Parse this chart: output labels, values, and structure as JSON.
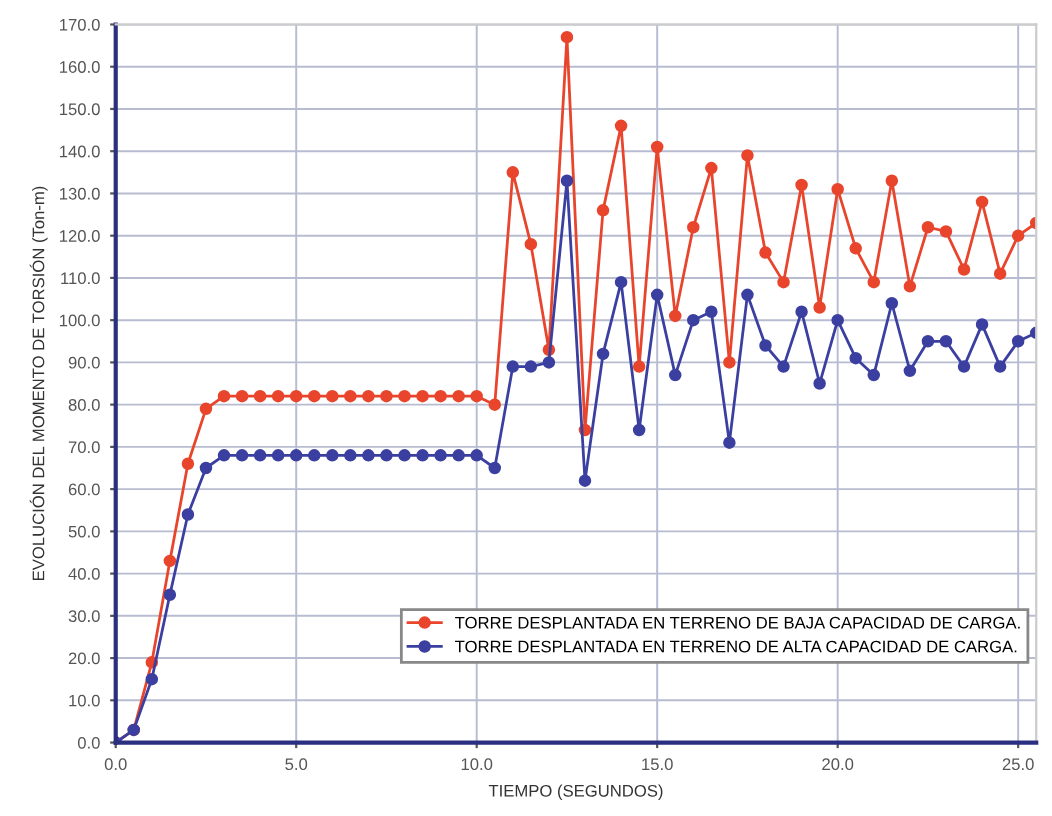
{
  "chart_data": {
    "type": "line",
    "xlabel": "TIEMPO (SEGUNDOS)",
    "ylabel": "EVOLUCIÓN DEL MOMENTO DE TORSIÓN (Ton-m)",
    "x": [
      0,
      0.5,
      1,
      1.5,
      2,
      2.5,
      3,
      3.5,
      4,
      4.5,
      5,
      5.5,
      6,
      6.5,
      7,
      7.5,
      8,
      8.5,
      9,
      9.5,
      10,
      10.5,
      11,
      11.5,
      12,
      12.5,
      13,
      13.5,
      14,
      14.5,
      15,
      15.5,
      16,
      16.5,
      17,
      17.5,
      18,
      18.5,
      19,
      19.5,
      20,
      20.5,
      21,
      21.5,
      22,
      22.5,
      23,
      23.5,
      24,
      24.5,
      25,
      25.5
    ],
    "series": [
      {
        "name": "TORRE DESPLANTADA EN TERRENO DE BAJA CAPACIDAD DE CARGA.",
        "color": "#e8452c",
        "values": [
          0,
          3,
          19,
          43,
          66,
          79,
          82,
          82,
          82,
          82,
          82,
          82,
          82,
          82,
          82,
          82,
          82,
          82,
          82,
          82,
          82,
          80,
          135,
          118,
          93,
          167,
          74,
          126,
          146,
          89,
          141,
          101,
          122,
          136,
          90,
          139,
          116,
          109,
          132,
          103,
          131,
          117,
          109,
          133,
          108,
          122,
          121,
          112,
          128,
          111,
          120,
          123
        ]
      },
      {
        "name": "TORRE DESPLANTADA EN TERRENO DE ALTA CAPACIDAD DE CARGA.",
        "color": "#3a3fa0",
        "values": [
          0,
          3,
          15,
          35,
          54,
          65,
          68,
          68,
          68,
          68,
          68,
          68,
          68,
          68,
          68,
          68,
          68,
          68,
          68,
          68,
          68,
          65,
          89,
          89,
          90,
          133,
          62,
          92,
          109,
          74,
          106,
          87,
          100,
          102,
          71,
          106,
          94,
          89,
          102,
          85,
          100,
          91,
          87,
          104,
          88,
          95,
          95,
          89,
          99,
          89,
          95,
          97
        ]
      }
    ],
    "xlim": [
      0,
      25.5
    ],
    "ylim": [
      0,
      170
    ],
    "xticks": [
      {
        "value": 0,
        "label": "0.0"
      },
      {
        "value": 5,
        "label": "5.0"
      },
      {
        "value": 10,
        "label": "10.0"
      },
      {
        "value": 15,
        "label": "15.0"
      },
      {
        "value": 20,
        "label": "20.0"
      },
      {
        "value": 25,
        "label": "25.0"
      }
    ],
    "yticks": [
      {
        "value": 0,
        "label": "0.0"
      },
      {
        "value": 10,
        "label": "10.0"
      },
      {
        "value": 20,
        "label": "20.0"
      },
      {
        "value": 30,
        "label": "30.0"
      },
      {
        "value": 40,
        "label": "40.0"
      },
      {
        "value": 50,
        "label": "50.0"
      },
      {
        "value": 60,
        "label": "60.0"
      },
      {
        "value": 70,
        "label": "70.0"
      },
      {
        "value": 80,
        "label": "80.0"
      },
      {
        "value": 90,
        "label": "90.0"
      },
      {
        "value": 100,
        "label": "100.0"
      },
      {
        "value": 110,
        "label": "110.0"
      },
      {
        "value": 120,
        "label": "120.0"
      },
      {
        "value": 130,
        "label": "130.0"
      },
      {
        "value": 140,
        "label": "140.0"
      },
      {
        "value": 150,
        "label": "150.0"
      },
      {
        "value": 160,
        "label": "160.0"
      },
      {
        "value": 170,
        "label": "170.0"
      }
    ],
    "grid": true,
    "legend": "bottom right",
    "marker": "circle",
    "line_style": "solid"
  }
}
